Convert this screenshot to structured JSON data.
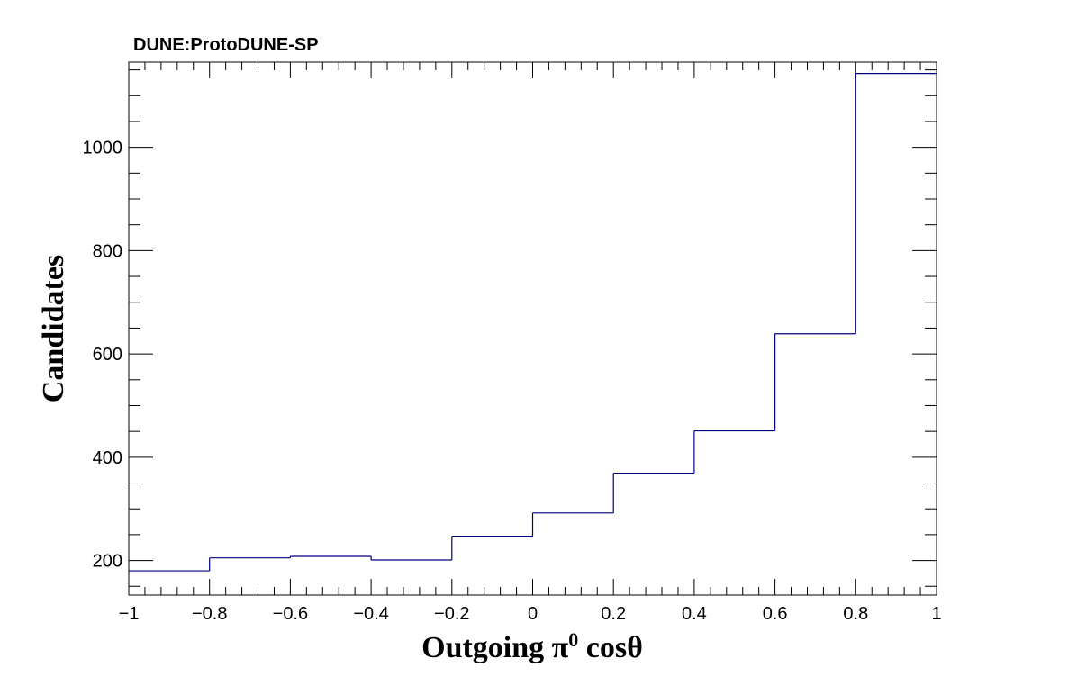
{
  "experiment_label": "DUNE:ProtoDUNE-SP",
  "colors": {
    "histogram": "#00007f",
    "axes": "#000000",
    "background": "#ffffff"
  },
  "chart_data": {
    "type": "bar",
    "style": "step-histogram",
    "title": "",
    "xlabel": "Outgoing  π⁰ cosθ",
    "xlabel_parts": {
      "prefix": "Outgoing  π",
      "superscript": "0",
      "suffix": " cosθ"
    },
    "ylabel": "Candidates",
    "xlim": [
      -1,
      1
    ],
    "ylim": [
      133,
      1165
    ],
    "bin_edges": [
      -1,
      -0.8,
      -0.6,
      -0.4,
      -0.2,
      0,
      0.2,
      0.4,
      0.6,
      0.8,
      1
    ],
    "values": [
      180,
      205,
      208,
      201,
      247,
      292,
      369,
      451,
      639,
      1143
    ],
    "x_ticks": [
      -1,
      -0.8,
      -0.6,
      -0.4,
      -0.2,
      0,
      0.2,
      0.4,
      0.6,
      0.8,
      1
    ],
    "x_tick_labels": [
      "−1",
      "−0.8",
      "−0.6",
      "−0.4",
      "−0.2",
      "0",
      "0.2",
      "0.4",
      "0.6",
      "0.8",
      "1"
    ],
    "y_ticks": [
      200,
      400,
      600,
      800,
      1000
    ],
    "y_tick_labels": [
      "200",
      "400",
      "600",
      "800",
      "1000"
    ],
    "grid": false,
    "legend": "none"
  }
}
